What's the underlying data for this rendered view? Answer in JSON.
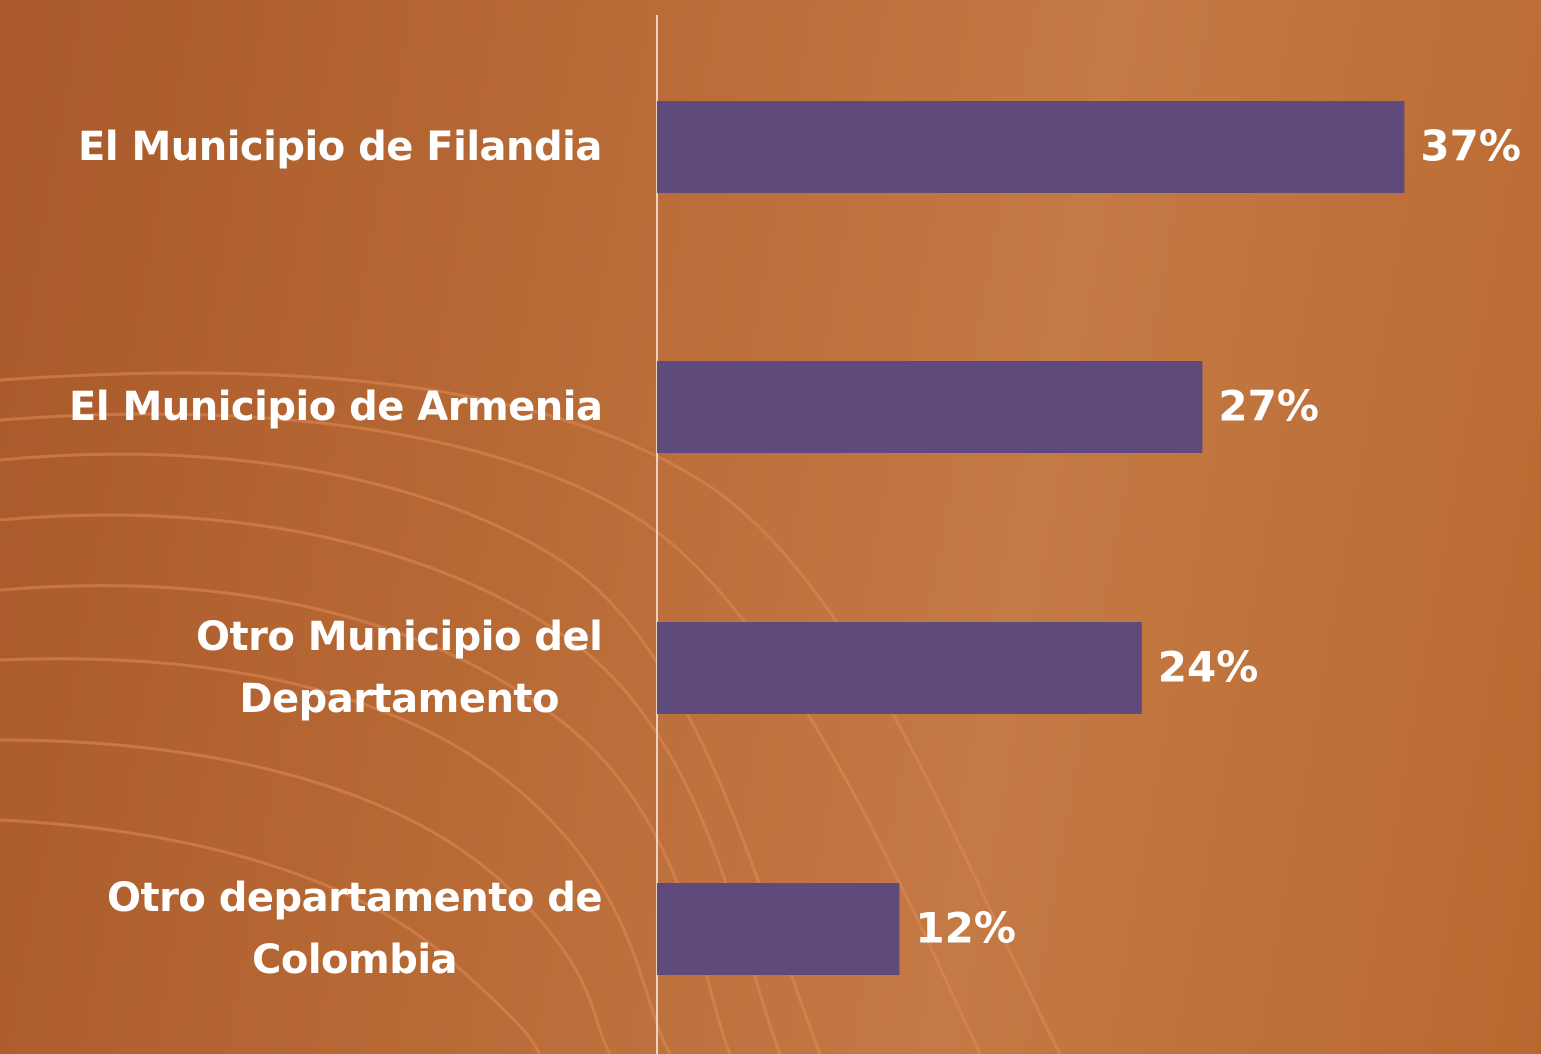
{
  "chart_data": {
    "type": "bar",
    "orientation": "horizontal",
    "categories": [
      "El Municipio de Filandia",
      "El Municipio de Armenia",
      "Otro Municipio del\nDepartamento",
      "Otro departamento de\nColombia"
    ],
    "values": [
      37,
      27,
      24,
      12
    ],
    "value_labels": [
      "37%",
      "27%",
      "24%",
      "12%"
    ],
    "color": "#5f4a7c"
  }
}
